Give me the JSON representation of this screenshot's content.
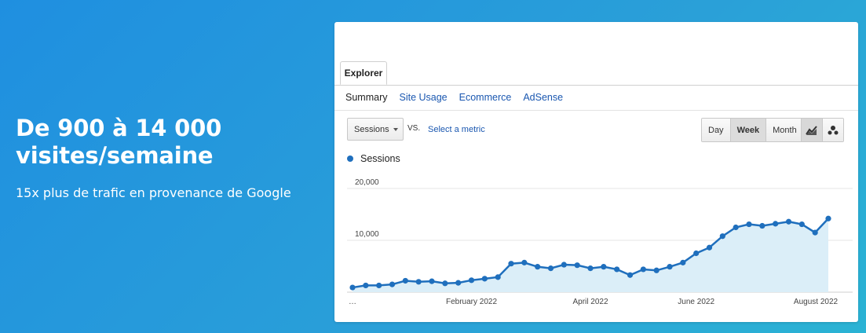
{
  "hero": {
    "title": "De 900 à 14 000 visites/semaine",
    "subtitle": "15x plus de trafic en provenance de Google"
  },
  "analytics": {
    "tab": "Explorer",
    "subnav": [
      "Summary",
      "Site Usage",
      "Ecommerce",
      "AdSense"
    ],
    "metric_select": "Sessions",
    "vs_label": "VS.",
    "select_metric_link": "Select a metric",
    "period_buttons": [
      "Day",
      "Week",
      "Month"
    ],
    "active_period": "Week",
    "view_icons": [
      "line-chart-icon",
      "motion-chart-icon"
    ]
  },
  "colors": {
    "accent": "#1f6fbd",
    "area": "#dbeef8",
    "link": "#1a57b0"
  },
  "chart_data": {
    "type": "area",
    "series": [
      {
        "name": "Sessions",
        "values": [
          900,
          1300,
          1300,
          1500,
          2200,
          2000,
          2100,
          1700,
          1800,
          2300,
          2600,
          2900,
          5500,
          5700,
          4900,
          4600,
          5300,
          5200,
          4600,
          4900,
          4400,
          3300,
          4400,
          4200,
          4900,
          5700,
          7500,
          8600,
          10800,
          12500,
          13100,
          12800,
          13200,
          13600,
          13100,
          11500,
          14200
        ]
      }
    ],
    "x_tick_labels": [
      "…",
      "February 2022",
      "April 2022",
      "June 2022",
      "August 2022"
    ],
    "y_tick_labels": [
      "20,000",
      "10,000"
    ],
    "ylim": [
      0,
      20000
    ],
    "grid": true,
    "legend": "top-left"
  }
}
